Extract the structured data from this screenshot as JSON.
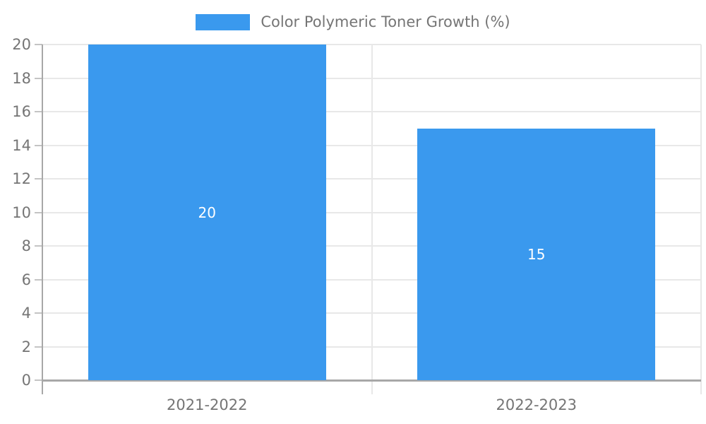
{
  "legend": {
    "label": "Color Polymeric Toner Growth (%)"
  },
  "chart_data": {
    "type": "bar",
    "title": "",
    "categories": [
      "2021-2022",
      "2022-2023"
    ],
    "series": [
      {
        "name": "Color Polymeric Toner Growth (%)",
        "values": [
          20,
          15
        ]
      }
    ],
    "bar_value_labels": [
      "20",
      "15"
    ],
    "xlabel": "",
    "ylabel": "",
    "ylim": [
      0,
      20
    ],
    "ytick_step": 2,
    "ytick_labels": [
      "0",
      "2",
      "4",
      "6",
      "8",
      "10",
      "12",
      "14",
      "16",
      "18",
      "20"
    ],
    "grid": "on",
    "legend_position": "top-center"
  },
  "colors": {
    "bar": "#3a99ee",
    "grid": "#e8e8e8",
    "axis": "#a8a8a8",
    "tick_mark": "#c4c4c4",
    "tick_text": "#757575",
    "bar_label_text": "#ffffff",
    "background": "#ffffff"
  }
}
